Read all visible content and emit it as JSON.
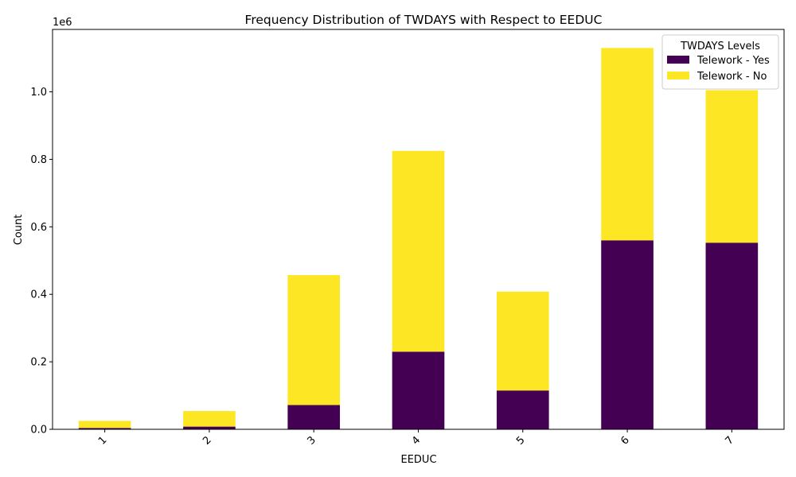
{
  "chart_data": {
    "type": "bar",
    "stacked": true,
    "title": "Frequency Distribution of TWDAYS with Respect to EEDUC",
    "xlabel": "EEDUC",
    "ylabel": "Count",
    "y_offset_label": "1e6",
    "categories": [
      "1",
      "2",
      "3",
      "4",
      "5",
      "6",
      "7"
    ],
    "yticks": [
      "0.0",
      "0.2",
      "0.4",
      "0.6",
      "0.8",
      "1.0"
    ],
    "ytick_values": [
      0,
      200000,
      400000,
      600000,
      800000,
      1000000
    ],
    "ylim": [
      0,
      1185000
    ],
    "legend_title": "TWDAYS Levels",
    "legend_position": "top-right",
    "grid": false,
    "series": [
      {
        "name": "Telework - Yes",
        "color": "#440154",
        "values": [
          4000,
          8000,
          72000,
          230000,
          115000,
          560000,
          553000
        ]
      },
      {
        "name": "Telework - No",
        "color": "#fde725",
        "values": [
          21000,
          46000,
          385000,
          595000,
          293000,
          570000,
          452000
        ]
      }
    ]
  }
}
